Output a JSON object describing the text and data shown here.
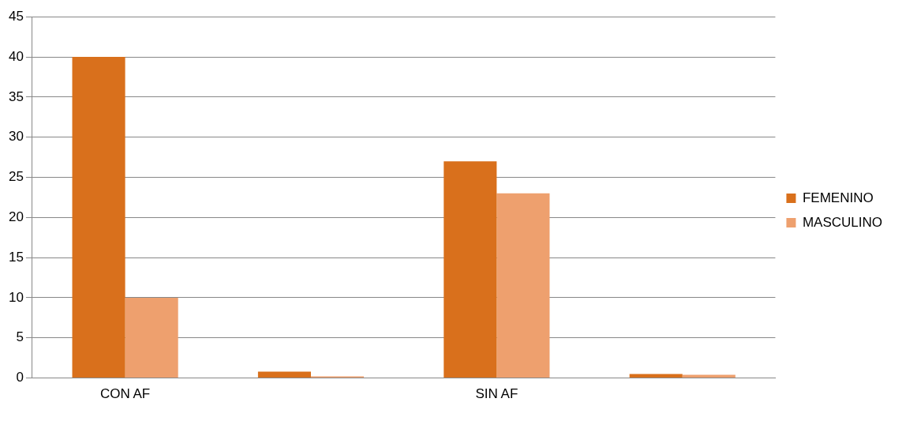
{
  "chart_data": {
    "type": "bar",
    "categories": [
      "CON AF",
      null,
      "SIN AF",
      null
    ],
    "series": [
      {
        "name": "FEMENINO",
        "color": "#d9701c",
        "values": [
          40,
          0.8,
          27,
          0.5
        ]
      },
      {
        "name": "MASCULINO",
        "color": "#eea06e",
        "values": [
          10,
          0.2,
          23,
          0.4
        ]
      }
    ],
    "ylim": [
      0,
      45
    ],
    "yticks": [
      0,
      5,
      10,
      15,
      20,
      25,
      30,
      35,
      40,
      45
    ],
    "grid": "y",
    "legend": "right"
  }
}
